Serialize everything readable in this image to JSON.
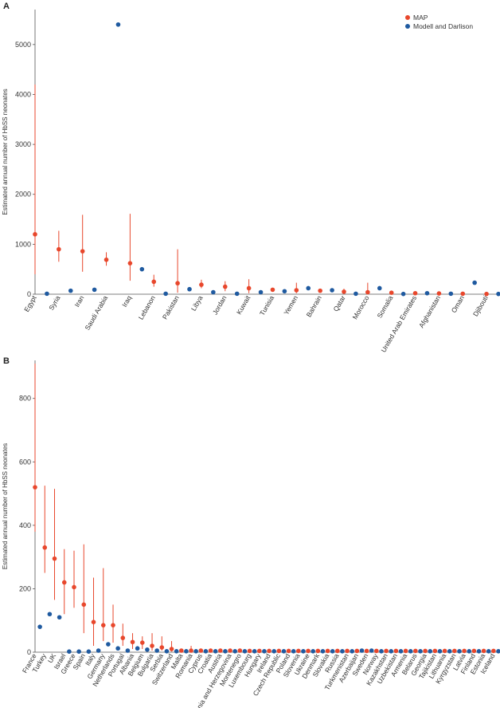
{
  "panels": [
    {
      "id": "panel-a",
      "label": "A"
    },
    {
      "id": "panel-b",
      "label": "B"
    }
  ],
  "colors": {
    "map": "#e8472c",
    "modell": "#1f5aa0",
    "axis": "#555555",
    "text": "#333333"
  },
  "chart_data": [
    {
      "type": "scatter",
      "panel": "A",
      "ylabel": "Estimated annual number of HbSS neonates",
      "ylim": [
        0,
        5700
      ],
      "yticks": [
        0,
        1000,
        2000,
        3000,
        4000,
        5000
      ],
      "grid": false,
      "legend_position": "top-right",
      "categories": [
        "Egypt",
        "Syria",
        "Iran",
        "Saudi Arabia",
        "Iraq",
        "Lebanon",
        "Pakistan",
        "Libya",
        "Jordan",
        "Kuwait",
        "Tunisia",
        "Yemen",
        "Bahrain",
        "Qatar",
        "Morocco",
        "Somalia",
        "United Arab Emirates",
        "Afghanistan",
        "Oman",
        "Djibouti"
      ],
      "series": [
        {
          "name": "MAP",
          "values": [
            1200,
            900,
            860,
            690,
            620,
            250,
            220,
            190,
            150,
            120,
            90,
            80,
            70,
            50,
            40,
            30,
            20,
            15,
            10,
            5
          ],
          "lower": [
            400,
            650,
            450,
            570,
            270,
            150,
            30,
            120,
            60,
            20,
            60,
            20,
            40,
            10,
            0,
            0,
            0,
            0,
            0,
            0
          ],
          "upper": [
            4200,
            1270,
            1590,
            840,
            1610,
            390,
            900,
            290,
            260,
            300,
            120,
            230,
            110,
            110,
            230,
            70,
            50,
            40,
            40,
            25
          ]
        },
        {
          "name": "Modell and Darlison",
          "values": [
            10,
            70,
            90,
            5400,
            500,
            10,
            100,
            40,
            10,
            40,
            60,
            120,
            80,
            10,
            120,
            5,
            20,
            10,
            230,
            5
          ]
        }
      ]
    },
    {
      "type": "scatter",
      "panel": "B",
      "ylabel": "Estimated annual number of HbSS neonates",
      "ylim": [
        0,
        920
      ],
      "yticks": [
        0,
        200,
        400,
        600,
        800
      ],
      "grid": false,
      "categories": [
        "France",
        "Turkey",
        "UK",
        "Israel",
        "Greece",
        "Spain",
        "Italy",
        "Germany",
        "Netherlands",
        "Portugal",
        "Albania",
        "Belgium",
        "Bulgaria",
        "Serbia",
        "Switzerland",
        "Malta",
        "Romania",
        "Cyprus",
        "Croatia",
        "Austria",
        "Bosnia and Herzegovina",
        "Montenegro",
        "Luxembourg",
        "Hungary",
        "Ireland",
        "Czech Republic",
        "Poland",
        "Slovenia",
        "Ukraine",
        "Denmark",
        "Slovakia",
        "Russia",
        "Turkmenistan",
        "Azerbaijan",
        "Sweden",
        "Norway",
        "Kazakhstan",
        "Uzbekistan",
        "Armenia",
        "Belarus",
        "Georgia",
        "Tajikistan",
        "Lithuania",
        "Kyrgyzstan",
        "Latvia",
        "Finland",
        "Estonia",
        "Iceland"
      ],
      "series": [
        {
          "name": "MAP",
          "values": [
            520,
            330,
            295,
            220,
            205,
            150,
            95,
            85,
            85,
            45,
            32,
            30,
            20,
            15,
            10,
            5,
            5,
            5,
            5,
            5,
            5,
            5,
            4,
            4,
            4,
            4,
            4,
            4,
            4,
            4,
            4,
            4,
            4,
            4,
            4,
            4,
            4,
            4,
            4,
            4,
            4,
            4,
            4,
            4,
            4,
            4,
            4,
            4
          ],
          "lower": [
            380,
            250,
            165,
            120,
            140,
            60,
            20,
            35,
            30,
            20,
            10,
            10,
            5,
            5,
            2,
            2,
            2,
            2,
            2,
            2,
            2,
            2,
            1,
            1,
            1,
            1,
            1,
            1,
            1,
            1,
            1,
            1,
            1,
            1,
            1,
            1,
            1,
            1,
            1,
            1,
            1,
            1,
            1,
            1,
            1,
            1,
            1,
            1
          ],
          "upper": [
            910,
            525,
            515,
            325,
            320,
            340,
            235,
            265,
            150,
            90,
            60,
            50,
            60,
            50,
            35,
            10,
            20,
            10,
            10,
            10,
            8,
            8,
            8,
            8,
            8,
            8,
            8,
            8,
            8,
            8,
            8,
            8,
            8,
            8,
            8,
            8,
            8,
            8,
            8,
            8,
            8,
            8,
            8,
            8,
            8,
            8,
            8,
            8
          ]
        },
        {
          "name": "Modell and Darlison",
          "values": [
            80,
            120,
            110,
            2,
            2,
            2,
            5,
            25,
            12,
            5,
            12,
            8,
            5,
            3,
            3,
            3,
            3,
            3,
            3,
            3,
            3,
            3,
            3,
            3,
            3,
            3,
            3,
            3,
            3,
            3,
            3,
            3,
            3,
            5,
            5,
            3,
            3,
            3,
            3,
            3,
            3,
            3,
            3,
            3,
            3,
            3,
            3,
            3
          ]
        }
      ]
    }
  ]
}
